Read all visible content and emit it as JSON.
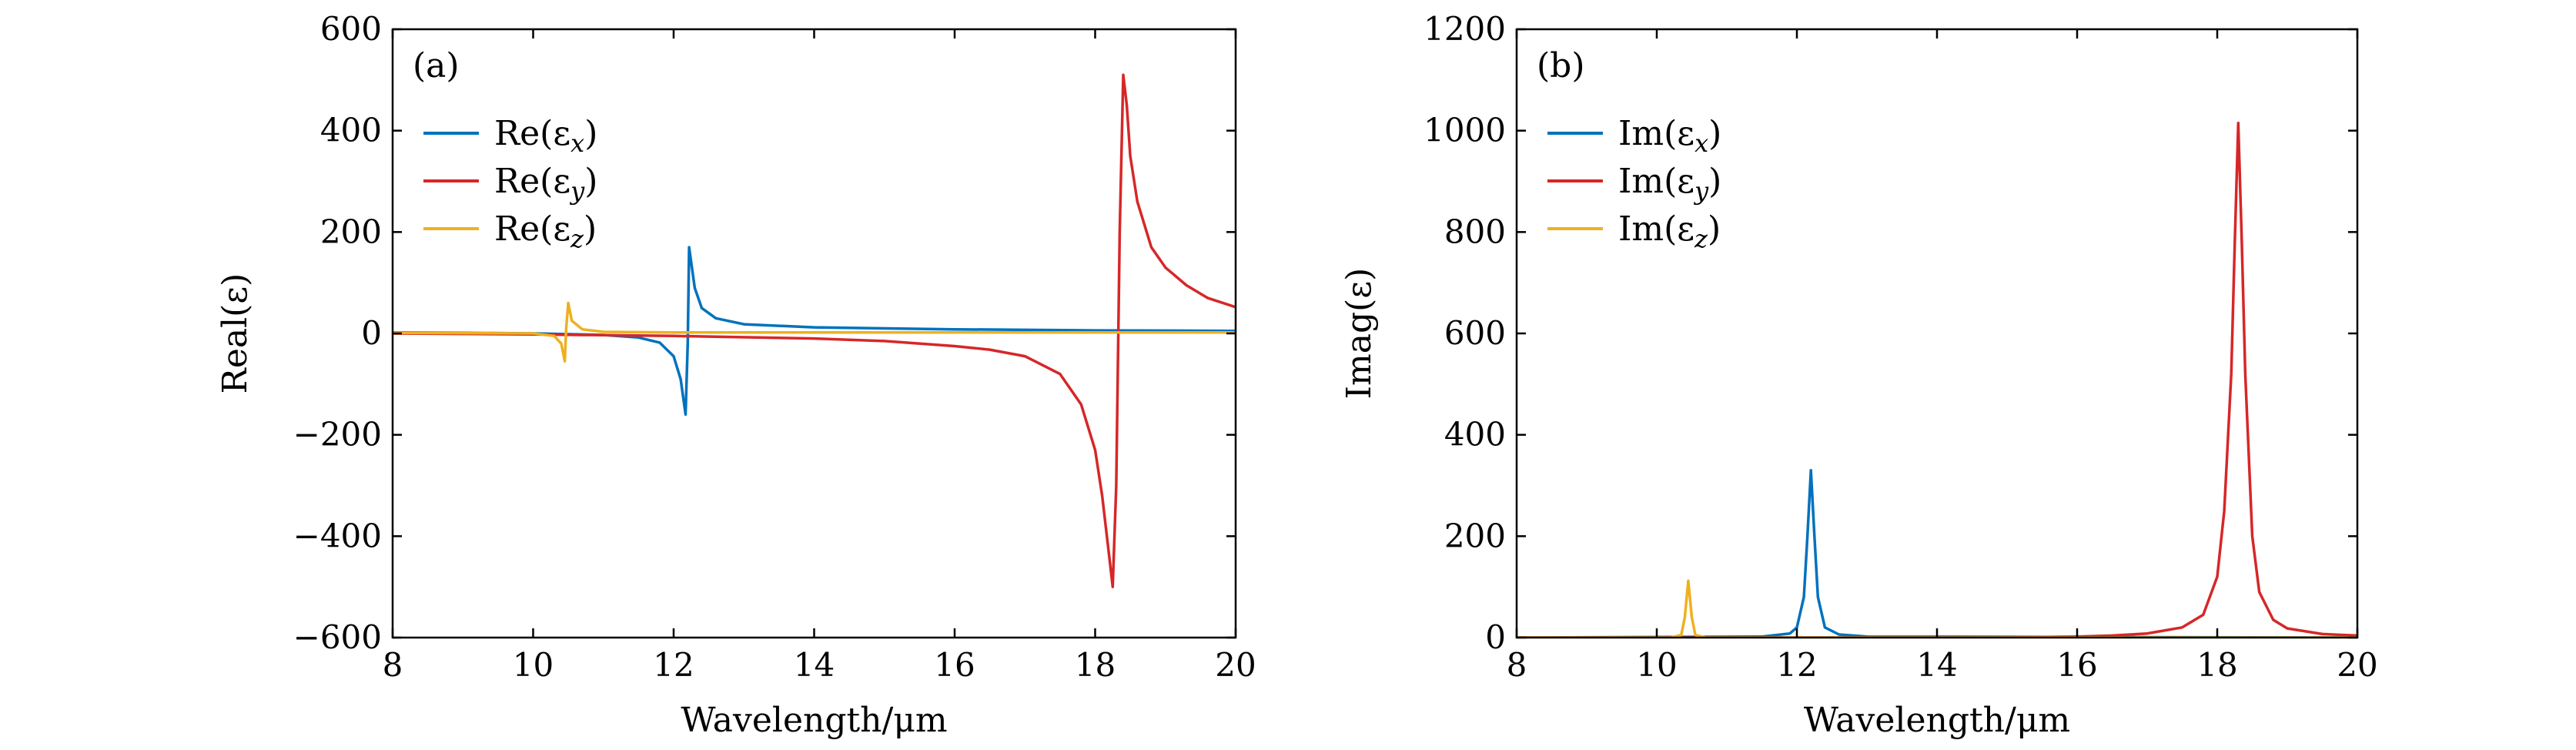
{
  "chart_data": [
    {
      "type": "line",
      "panel_label": "(a)",
      "xlabel": "Wavelength/μm",
      "ylabel": "Real(ε)",
      "xlim": [
        8,
        20
      ],
      "ylim": [
        -600,
        600
      ],
      "xticks": [
        8,
        10,
        12,
        14,
        16,
        18,
        20
      ],
      "xtick_labels": [
        "8",
        "10",
        "12",
        "14",
        "16",
        "18",
        "20"
      ],
      "yticks": [
        -600,
        -400,
        -200,
        0,
        200,
        400,
        600
      ],
      "ytick_labels": [
        "−600",
        "−400",
        "−200",
        "0",
        "200",
        "400",
        "600"
      ],
      "legend_position": "upper-left",
      "series": [
        {
          "name": "Re(εx)",
          "base": "Re(ε",
          "sub": "x",
          "close": ")",
          "color": "#0072BD",
          "x": [
            8,
            9,
            10,
            11,
            11.5,
            11.8,
            12.0,
            12.1,
            12.17,
            12.2,
            12.22,
            12.25,
            12.3,
            12.4,
            12.6,
            13,
            14,
            16,
            18,
            20
          ],
          "y": [
            2,
            1,
            0,
            -3,
            -8,
            -18,
            -45,
            -90,
            -160,
            -20,
            170,
            140,
            90,
            50,
            30,
            18,
            12,
            8,
            6,
            5
          ]
        },
        {
          "name": "Re(εy)",
          "base": "Re(ε",
          "sub": "y",
          "close": ")",
          "color": "#D62728",
          "x": [
            8,
            10,
            12,
            14,
            15,
            16,
            16.5,
            17,
            17.5,
            17.8,
            18.0,
            18.1,
            18.2,
            18.25,
            18.3,
            18.35,
            18.4,
            18.45,
            18.5,
            18.6,
            18.8,
            19.0,
            19.3,
            19.6,
            20
          ],
          "y": [
            0,
            -2,
            -5,
            -10,
            -15,
            -25,
            -32,
            -45,
            -80,
            -140,
            -230,
            -320,
            -440,
            -500,
            -300,
            200,
            510,
            450,
            350,
            260,
            170,
            130,
            95,
            70,
            52
          ]
        },
        {
          "name": "Re(εz)",
          "base": "Re(ε",
          "sub": "z",
          "close": ")",
          "color": "#EDB120",
          "x": [
            8,
            10,
            10.3,
            10.4,
            10.45,
            10.47,
            10.5,
            10.55,
            10.7,
            11,
            12,
            14,
            16,
            18,
            20
          ],
          "y": [
            1,
            0,
            -5,
            -20,
            -55,
            10,
            60,
            25,
            8,
            3,
            2,
            2,
            2,
            2,
            2
          ]
        }
      ]
    },
    {
      "type": "line",
      "panel_label": "(b)",
      "xlabel": "Wavelength/μm",
      "ylabel": "Imag(ε)",
      "xlim": [
        8,
        20
      ],
      "ylim": [
        0,
        1200
      ],
      "xticks": [
        8,
        10,
        12,
        14,
        16,
        18,
        20
      ],
      "xtick_labels": [
        "8",
        "10",
        "12",
        "14",
        "16",
        "18",
        "20"
      ],
      "yticks": [
        0,
        200,
        400,
        600,
        800,
        1000,
        1200
      ],
      "ytick_labels": [
        "0",
        "200",
        "400",
        "600",
        "800",
        "1000",
        "1200"
      ],
      "legend_position": "upper-left",
      "series": [
        {
          "name": "Im(εx)",
          "base": "Im(ε",
          "sub": "x",
          "close": ")",
          "color": "#0072BD",
          "x": [
            8,
            11.5,
            11.9,
            12.0,
            12.1,
            12.15,
            12.2,
            12.25,
            12.3,
            12.4,
            12.6,
            13,
            20
          ],
          "y": [
            0,
            2,
            8,
            20,
            80,
            200,
            330,
            200,
            80,
            20,
            6,
            2,
            0
          ]
        },
        {
          "name": "Im(εy)",
          "base": "Im(ε",
          "sub": "y",
          "close": ")",
          "color": "#D62728",
          "x": [
            8,
            15,
            16,
            16.5,
            17,
            17.5,
            17.8,
            18.0,
            18.1,
            18.2,
            18.25,
            18.3,
            18.35,
            18.4,
            18.5,
            18.6,
            18.8,
            19,
            19.5,
            20
          ],
          "y": [
            0,
            0,
            2,
            4,
            8,
            20,
            45,
            120,
            250,
            520,
            780,
            1015,
            780,
            520,
            200,
            90,
            35,
            18,
            7,
            4
          ]
        },
        {
          "name": "Im(εz)",
          "base": "Im(ε",
          "sub": "z",
          "close": ")",
          "color": "#EDB120",
          "x": [
            8,
            10.2,
            10.35,
            10.4,
            10.45,
            10.5,
            10.55,
            10.7,
            20
          ],
          "y": [
            0,
            0,
            5,
            40,
            112,
            40,
            5,
            0,
            0
          ]
        }
      ]
    }
  ]
}
